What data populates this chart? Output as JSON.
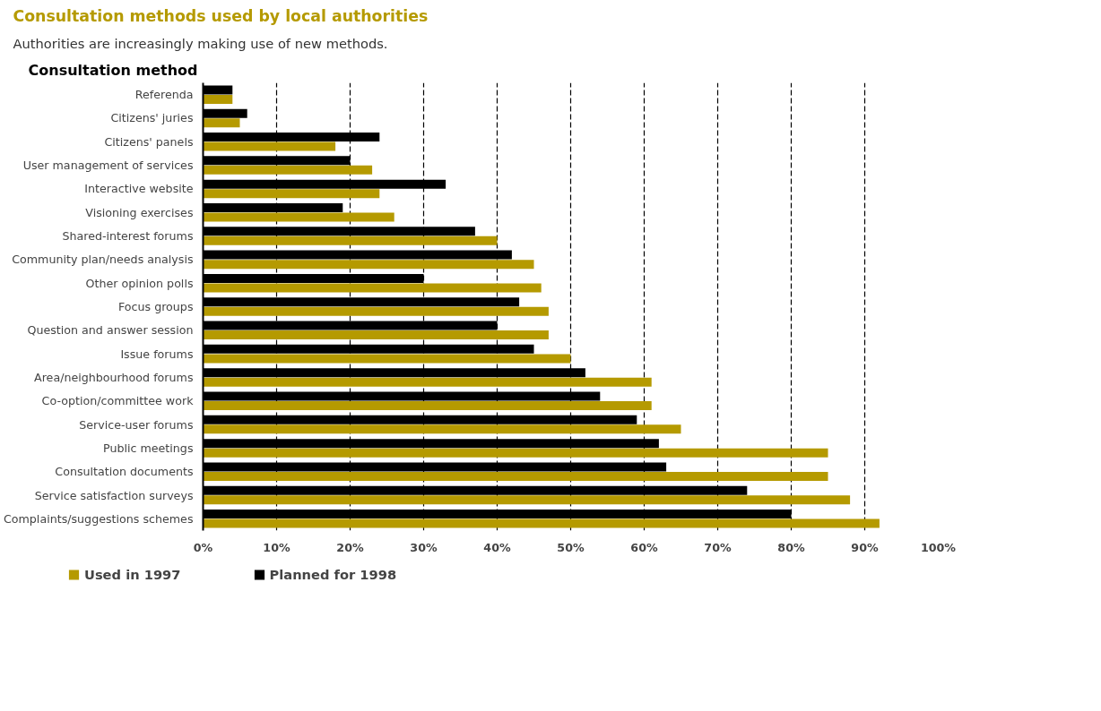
{
  "chart_data": {
    "type": "bar",
    "orientation": "horizontal",
    "title": "Consultation methods used by local authorities",
    "subtitle": "Authorities are increasingly making use of new methods.",
    "ylabel": "Consultation method",
    "categories": [
      "Referenda",
      "Citizens' juries",
      "Citizens' panels",
      "User management of services",
      "Interactive website",
      "Visioning exercises",
      "Shared-interest forums",
      "Community plan/needs analysis",
      "Other opinion polls",
      "Focus groups",
      "Question and answer session",
      "Issue forums",
      "Area/neighbourhood forums",
      "Co-option/committee work",
      "Service-user forums",
      "Public meetings",
      "Consultation documents",
      "Service satisfaction surveys",
      "Complaints/suggestions schemes"
    ],
    "series": [
      {
        "name": "Used in 1997",
        "color": "#b59a00",
        "values": [
          4,
          5,
          18,
          23,
          24,
          26,
          40,
          45,
          46,
          47,
          47,
          50,
          61,
          61,
          65,
          85,
          85,
          88,
          92
        ]
      },
      {
        "name": "Planned for 1998",
        "color": "#000000",
        "values": [
          4,
          6,
          24,
          20,
          33,
          19,
          37,
          42,
          30,
          43,
          40,
          45,
          52,
          54,
          59,
          62,
          63,
          74,
          80
        ]
      }
    ],
    "xlim": [
      0,
      100
    ],
    "xticks": [
      {
        "value": 0,
        "label": "0%"
      },
      {
        "value": 10,
        "label": "10%"
      },
      {
        "value": 20,
        "label": "20%"
      },
      {
        "value": 30,
        "label": "30%"
      },
      {
        "value": 40,
        "label": "40%"
      },
      {
        "value": 50,
        "label": "50%"
      },
      {
        "value": 60,
        "label": "60%"
      },
      {
        "value": 70,
        "label": "70%"
      },
      {
        "value": 80,
        "label": "80%"
      },
      {
        "value": 90,
        "label": "90%"
      },
      {
        "value": 100,
        "label": "100%"
      }
    ],
    "grid": "x",
    "legend": "bottom left"
  }
}
